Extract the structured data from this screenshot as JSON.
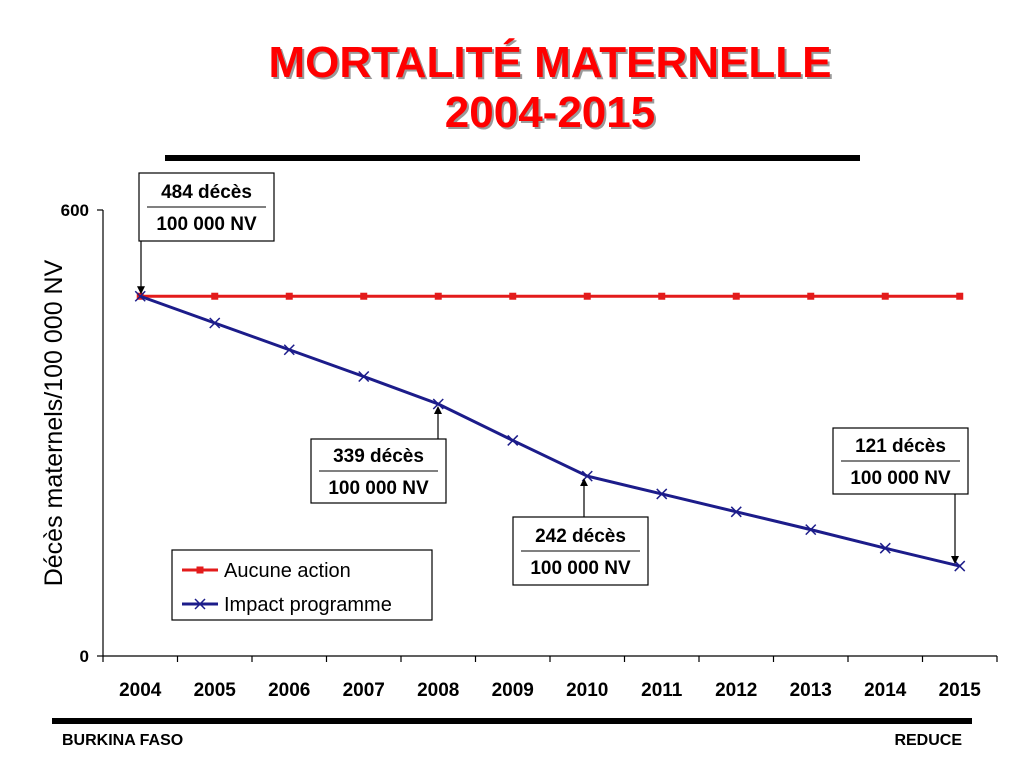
{
  "title_line1": "MORTALITÉ MATERNELLE",
  "title_line2": "2004-2015",
  "footer": {
    "left": "BURKINA FASO",
    "right": "REDUCE"
  },
  "colors": {
    "title": "#ff0000",
    "aucune_action": "#e31b1b",
    "impact_programme": "#1c1c8a"
  },
  "chart_data": {
    "type": "line",
    "categories": [
      "2004",
      "2005",
      "2006",
      "2007",
      "2008",
      "2009",
      "2010",
      "2011",
      "2012",
      "2013",
      "2014",
      "2015"
    ],
    "ylabel": "Décès maternels/100 000 NV",
    "ylim": [
      0,
      600
    ],
    "yticks": [
      "0",
      "600"
    ],
    "grid": false,
    "legend_position": "bottom-left",
    "series": [
      {
        "name": "Aucune action",
        "marker": "square",
        "values": [
          484,
          484,
          484,
          484,
          484,
          484,
          484,
          484,
          484,
          484,
          484,
          484
        ]
      },
      {
        "name": "Impact programme",
        "marker": "x",
        "values": [
          484,
          448,
          412,
          376,
          339,
          290,
          242,
          218,
          194,
          170,
          145,
          121
        ]
      }
    ],
    "annotations": [
      {
        "x": "2004",
        "y": 484,
        "numerator": "484 décès",
        "denominator": "100 000 NV"
      },
      {
        "x": "2008",
        "y": 339,
        "numerator": "339 décès",
        "denominator": "100 000 NV"
      },
      {
        "x": "2010",
        "y": 242,
        "numerator": "242 décès",
        "denominator": "100 000 NV"
      },
      {
        "x": "2015",
        "y": 121,
        "numerator": "121 décès",
        "denominator": "100 000 NV"
      }
    ]
  }
}
